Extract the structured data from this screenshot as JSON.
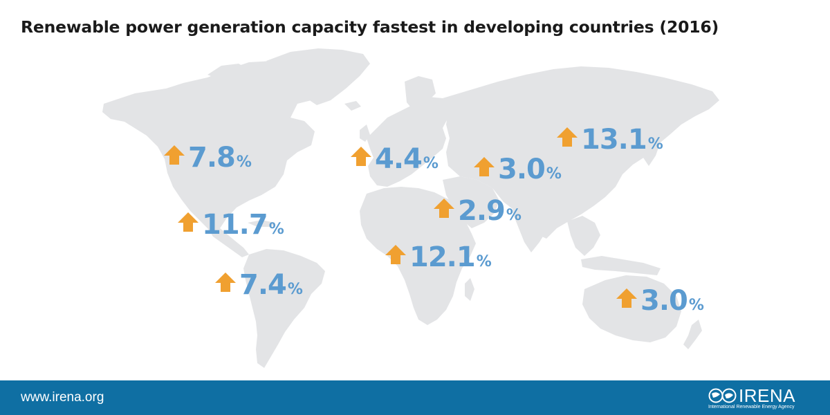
{
  "title": "Renewable power generation capacity fastest in developing countries (2016)",
  "colors": {
    "land": "#e3e4e6",
    "arrow": "#f0a030",
    "value": "#5b9bd0",
    "footer": "#0f6fa3"
  },
  "stats": [
    {
      "region": "north-america",
      "value": "7.8",
      "unit": "%",
      "icon": "up-arrow-icon"
    },
    {
      "region": "europe",
      "value": "4.4",
      "unit": "%",
      "icon": "up-arrow-icon"
    },
    {
      "region": "eurasia",
      "value": "3.0",
      "unit": "%",
      "icon": "up-arrow-icon"
    },
    {
      "region": "asia",
      "value": "13.1",
      "unit": "%",
      "icon": "up-arrow-icon"
    },
    {
      "region": "middle-east",
      "value": "2.9",
      "unit": "%",
      "icon": "up-arrow-icon"
    },
    {
      "region": "central-america-caribbean",
      "value": "11.7",
      "unit": "%",
      "icon": "up-arrow-icon"
    },
    {
      "region": "africa",
      "value": "12.1",
      "unit": "%",
      "icon": "up-arrow-icon"
    },
    {
      "region": "south-america",
      "value": "7.4",
      "unit": "%",
      "icon": "up-arrow-icon"
    },
    {
      "region": "oceania",
      "value": "3.0",
      "unit": "%",
      "icon": "up-arrow-icon"
    }
  ],
  "footer": {
    "url": "www.irena.org",
    "logo_name": "IRENA",
    "logo_sub": "International Renewable Energy Agency"
  }
}
